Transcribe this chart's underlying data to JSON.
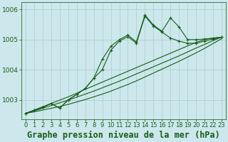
{
  "title": "Graphe pression niveau de la mer (hPa)",
  "xlabel_hours": [
    0,
    1,
    2,
    3,
    4,
    5,
    6,
    7,
    8,
    9,
    10,
    11,
    12,
    13,
    14,
    15,
    16,
    17,
    18,
    19,
    20,
    21,
    22,
    23
  ],
  "line1": [
    1002.55,
    1002.65,
    1002.75,
    1002.88,
    1002.72,
    1003.0,
    1003.18,
    1003.38,
    1003.72,
    1004.35,
    1004.78,
    1005.0,
    1005.15,
    1004.92,
    1005.82,
    1005.48,
    1005.28,
    1005.72,
    1005.42,
    1005.0,
    1005.0,
    1005.02,
    1005.05,
    1005.08
  ],
  "line2": [
    1002.55,
    1002.65,
    1002.75,
    1002.88,
    1002.72,
    1003.0,
    1003.18,
    1003.38,
    1003.72,
    1004.0,
    1004.65,
    1004.95,
    1005.1,
    1004.88,
    1005.78,
    1005.45,
    1005.25,
    1005.05,
    1004.95,
    1004.88,
    1004.88,
    1004.95,
    1005.02,
    1005.08
  ],
  "line3_linear": [
    1002.55,
    1002.66,
    1002.77,
    1002.88,
    1002.99,
    1003.1,
    1003.22,
    1003.35,
    1003.47,
    1003.59,
    1003.71,
    1003.83,
    1003.95,
    1004.07,
    1004.19,
    1004.31,
    1004.43,
    1004.55,
    1004.67,
    1004.79,
    1004.91,
    1005.0,
    1005.05,
    1005.08
  ],
  "line4_linear": [
    1002.55,
    1002.63,
    1002.72,
    1002.81,
    1002.9,
    1002.99,
    1003.09,
    1003.19,
    1003.29,
    1003.4,
    1003.51,
    1003.62,
    1003.74,
    1003.86,
    1003.98,
    1004.1,
    1004.22,
    1004.34,
    1004.46,
    1004.59,
    1004.72,
    1004.84,
    1004.97,
    1005.08
  ],
  "line5_linear": [
    1002.55,
    1002.6,
    1002.66,
    1002.72,
    1002.78,
    1002.85,
    1002.93,
    1003.01,
    1003.1,
    1003.19,
    1003.29,
    1003.4,
    1003.51,
    1003.63,
    1003.76,
    1003.89,
    1004.02,
    1004.15,
    1004.28,
    1004.42,
    1004.56,
    1004.71,
    1004.87,
    1005.03
  ],
  "bg_color": "#cce8ec",
  "grid_color": "#aacccc",
  "line_color": "#1a5c1a",
  "ylim_min": 1002.35,
  "ylim_max": 1006.25,
  "yticks": [
    1003,
    1004,
    1005,
    1006
  ],
  "tick_fontsize": 6.5,
  "title_fontsize": 8.5
}
